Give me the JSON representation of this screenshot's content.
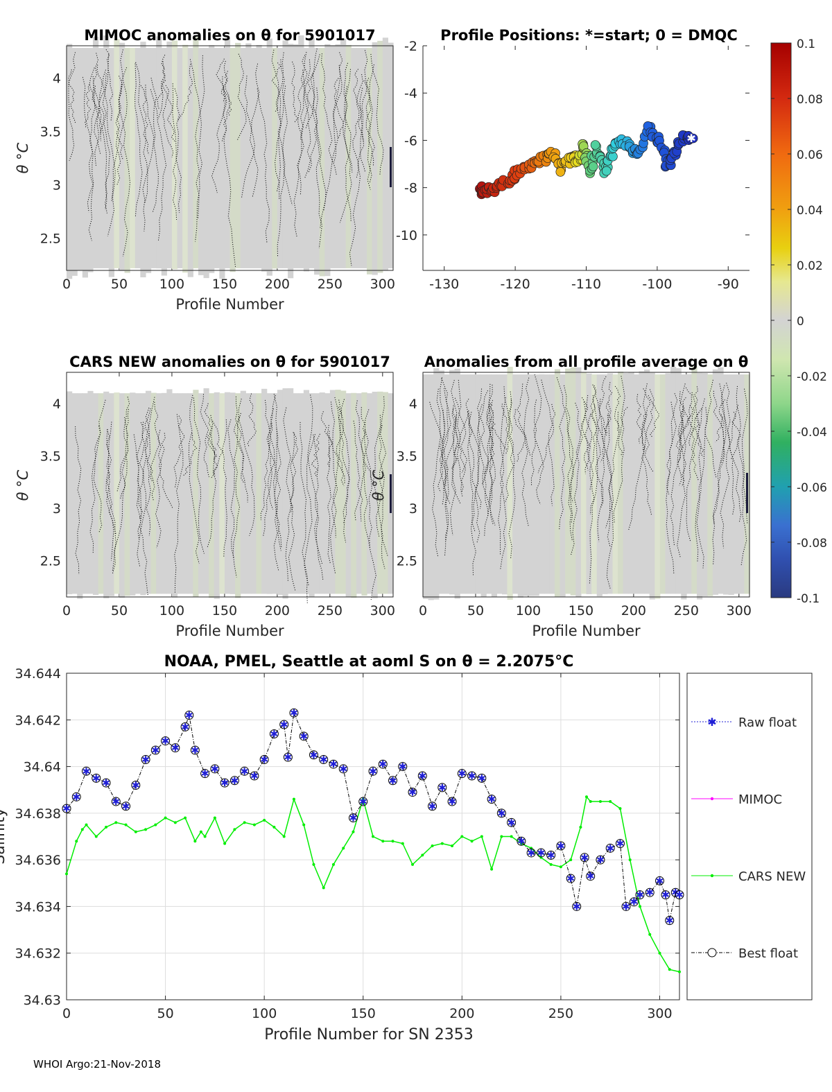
{
  "figure": {
    "footer": "WHOI Argo:21-Nov-2018"
  },
  "colors": {
    "axis": "#262626",
    "grid": "#dddddd",
    "field": "#d3d3d3",
    "raw": "#1f1fd6",
    "mimoc": "#ff00ff",
    "cars": "#00ee00",
    "best": "#000000"
  },
  "chart_data": [
    {
      "id": "mimoc",
      "type": "heatmap",
      "title": "MIMOC anomalies on θ  for 5901017",
      "xlabel": "Profile Number",
      "ylabel": "θ °C",
      "xlim": [
        0,
        310
      ],
      "ylim": [
        2.2,
        4.3
      ],
      "xticks": [
        0,
        50,
        100,
        150,
        200,
        250,
        300
      ],
      "yticks": [
        2.5,
        3,
        3.5,
        4
      ],
      "ytick_labels": [
        "2.5",
        "3",
        "3.5",
        "4"
      ]
    },
    {
      "id": "positions",
      "type": "scatter",
      "title": "Profile Positions: *=start; 0 = DMQC",
      "xlim": [
        -133,
        -87
      ],
      "ylim": [
        -11.5,
        -2
      ],
      "xticks": [
        -130,
        -120,
        -110,
        -100,
        -90
      ],
      "yticks": [
        -2,
        -4,
        -6,
        -8,
        -10
      ],
      "ytick_labels": [
        "-2",
        "-4",
        "-6",
        "-8",
        "-10"
      ],
      "track_lon": [
        -95.2,
        -96.5,
        -97.8,
        -98.6,
        -99.7,
        -101.2,
        -102.6,
        -103.8,
        -105.2,
        -106.4,
        -107.3,
        -108.6,
        -109.5,
        -110.3,
        -111.0,
        -112.0,
        -113.5,
        -114.8,
        -116.5,
        -118.2,
        -120.0,
        -121.4,
        -123.0,
        -124.2,
        -125.0
      ],
      "track_lat": [
        -5.9,
        -5.8,
        -6.6,
        -7.1,
        -6.0,
        -5.5,
        -6.6,
        -6.3,
        -6.0,
        -6.4,
        -7.4,
        -6.2,
        -7.4,
        -6.1,
        -7.0,
        -6.6,
        -7.2,
        -6.5,
        -6.9,
        -7.1,
        -7.4,
        -7.8,
        -8.0,
        -8.2,
        -8.05
      ],
      "colorbar": {
        "limits": [
          -0.1,
          0.1
        ],
        "tick_labels": [
          "0.1",
          "0.08",
          "0.06",
          "0.04",
          "0.02",
          "0",
          "-0.02",
          "-0.04",
          "-0.06",
          "-0.08",
          "-0.1"
        ]
      }
    },
    {
      "id": "cars",
      "type": "heatmap",
      "title": "CARS NEW anomalies on θ for 5901017",
      "xlabel": "Profile Number",
      "ylabel": "θ °C",
      "xlim": [
        0,
        310
      ],
      "ylim": [
        2.15,
        4.3
      ],
      "xticks": [
        0,
        50,
        100,
        150,
        200,
        250,
        300
      ],
      "yticks": [
        2.5,
        3,
        3.5,
        4
      ],
      "ytick_labels": [
        "2.5",
        "3",
        "3.5",
        "4"
      ]
    },
    {
      "id": "allprof",
      "type": "heatmap",
      "title": "Anomalies from all profile average on θ",
      "xlabel": "Profile Number",
      "ylabel": "θ °C",
      "xlim": [
        0,
        310
      ],
      "ylim": [
        2.15,
        4.3
      ],
      "xticks": [
        0,
        50,
        100,
        150,
        200,
        250,
        300
      ],
      "yticks": [
        2.5,
        3,
        3.5,
        4
      ],
      "ytick_labels": [
        "2.5",
        "3",
        "3.5",
        "4"
      ]
    },
    {
      "id": "salinity",
      "type": "line",
      "title": "NOAA, PMEL, Seattle at aoml S on θ = 2.2075°C",
      "xlabel": "Profile Number for SN 2353",
      "ylabel": "Salinity",
      "xlim": [
        0,
        310
      ],
      "ylim": [
        34.63,
        34.644
      ],
      "xticks": [
        0,
        50,
        100,
        150,
        200,
        250,
        300
      ],
      "yticks": [
        34.63,
        34.632,
        34.634,
        34.636,
        34.638,
        34.64,
        34.642,
        34.644
      ],
      "ytick_labels": [
        "34.63",
        "34.632",
        "34.634",
        "34.636",
        "34.638",
        "34.64",
        "34.642",
        "34.644"
      ],
      "legend": [
        "Raw float",
        "MIMOC",
        "CARS NEW",
        "Best float"
      ],
      "legend_position": "outside-right",
      "grid": true,
      "best_float_x": [
        0,
        5,
        10,
        15,
        20,
        25,
        30,
        35,
        40,
        45,
        50,
        55,
        60,
        62,
        65,
        70,
        75,
        80,
        85,
        90,
        95,
        100,
        105,
        110,
        112,
        115,
        120,
        125,
        130,
        135,
        140,
        145,
        150,
        155,
        160,
        165,
        170,
        175,
        180,
        185,
        190,
        195,
        200,
        205,
        210,
        215,
        220,
        225,
        230,
        235,
        240,
        245,
        250,
        255,
        258,
        262,
        265,
        270,
        275,
        280,
        283,
        287,
        290,
        295,
        300,
        303,
        305,
        308,
        310
      ],
      "best_float_y": [
        34.6382,
        34.6387,
        34.6398,
        34.6395,
        34.6393,
        34.6385,
        34.6383,
        34.6392,
        34.6403,
        34.6407,
        34.6411,
        34.6408,
        34.6417,
        34.6422,
        34.6407,
        34.6397,
        34.6399,
        34.6393,
        34.6394,
        34.6398,
        34.6396,
        34.6403,
        34.6414,
        34.6418,
        34.6404,
        34.6423,
        34.6413,
        34.6405,
        34.6403,
        34.6401,
        34.6399,
        34.6378,
        34.6385,
        34.6398,
        34.6401,
        34.6394,
        34.64,
        34.6389,
        34.6396,
        34.6383,
        34.6391,
        34.6385,
        34.6397,
        34.6396,
        34.6395,
        34.6386,
        34.638,
        34.6376,
        34.6368,
        34.6363,
        34.6363,
        34.6362,
        34.6366,
        34.6352,
        34.634,
        34.6361,
        34.6353,
        34.636,
        34.6365,
        34.6367,
        34.634,
        34.6342,
        34.6345,
        34.6346,
        34.6351,
        34.6345,
        34.6334,
        34.6346,
        34.6345
      ],
      "cars_x": [
        0,
        5,
        8,
        10,
        15,
        20,
        25,
        30,
        35,
        40,
        45,
        50,
        55,
        60,
        65,
        68,
        70,
        75,
        80,
        85,
        90,
        95,
        100,
        105,
        110,
        115,
        120,
        125,
        130,
        135,
        140,
        145,
        150,
        155,
        160,
        165,
        170,
        175,
        180,
        185,
        190,
        195,
        200,
        205,
        210,
        215,
        220,
        225,
        230,
        235,
        240,
        245,
        250,
        255,
        260,
        263,
        265,
        270,
        275,
        280,
        285,
        290,
        295,
        300,
        305,
        310
      ],
      "cars_y": [
        34.6354,
        34.6368,
        34.6373,
        34.6375,
        34.637,
        34.6374,
        34.6376,
        34.6375,
        34.6372,
        34.6373,
        34.6375,
        34.6378,
        34.6376,
        34.6378,
        34.6368,
        34.6372,
        34.637,
        34.6378,
        34.6367,
        34.6373,
        34.6376,
        34.6375,
        34.6377,
        34.6374,
        34.637,
        34.6386,
        34.6375,
        34.6358,
        34.6348,
        34.6358,
        34.6365,
        34.6372,
        34.6386,
        34.637,
        34.6368,
        34.6368,
        34.6367,
        34.6358,
        34.6362,
        34.6366,
        34.6367,
        34.6366,
        34.637,
        34.6368,
        34.637,
        34.6356,
        34.637,
        34.637,
        34.6367,
        34.6365,
        34.6361,
        34.6358,
        34.6357,
        34.636,
        34.6374,
        34.6387,
        34.6385,
        34.6385,
        34.6385,
        34.6382,
        34.636,
        34.634,
        34.6328,
        34.632,
        34.6313,
        34.6312
      ]
    }
  ]
}
